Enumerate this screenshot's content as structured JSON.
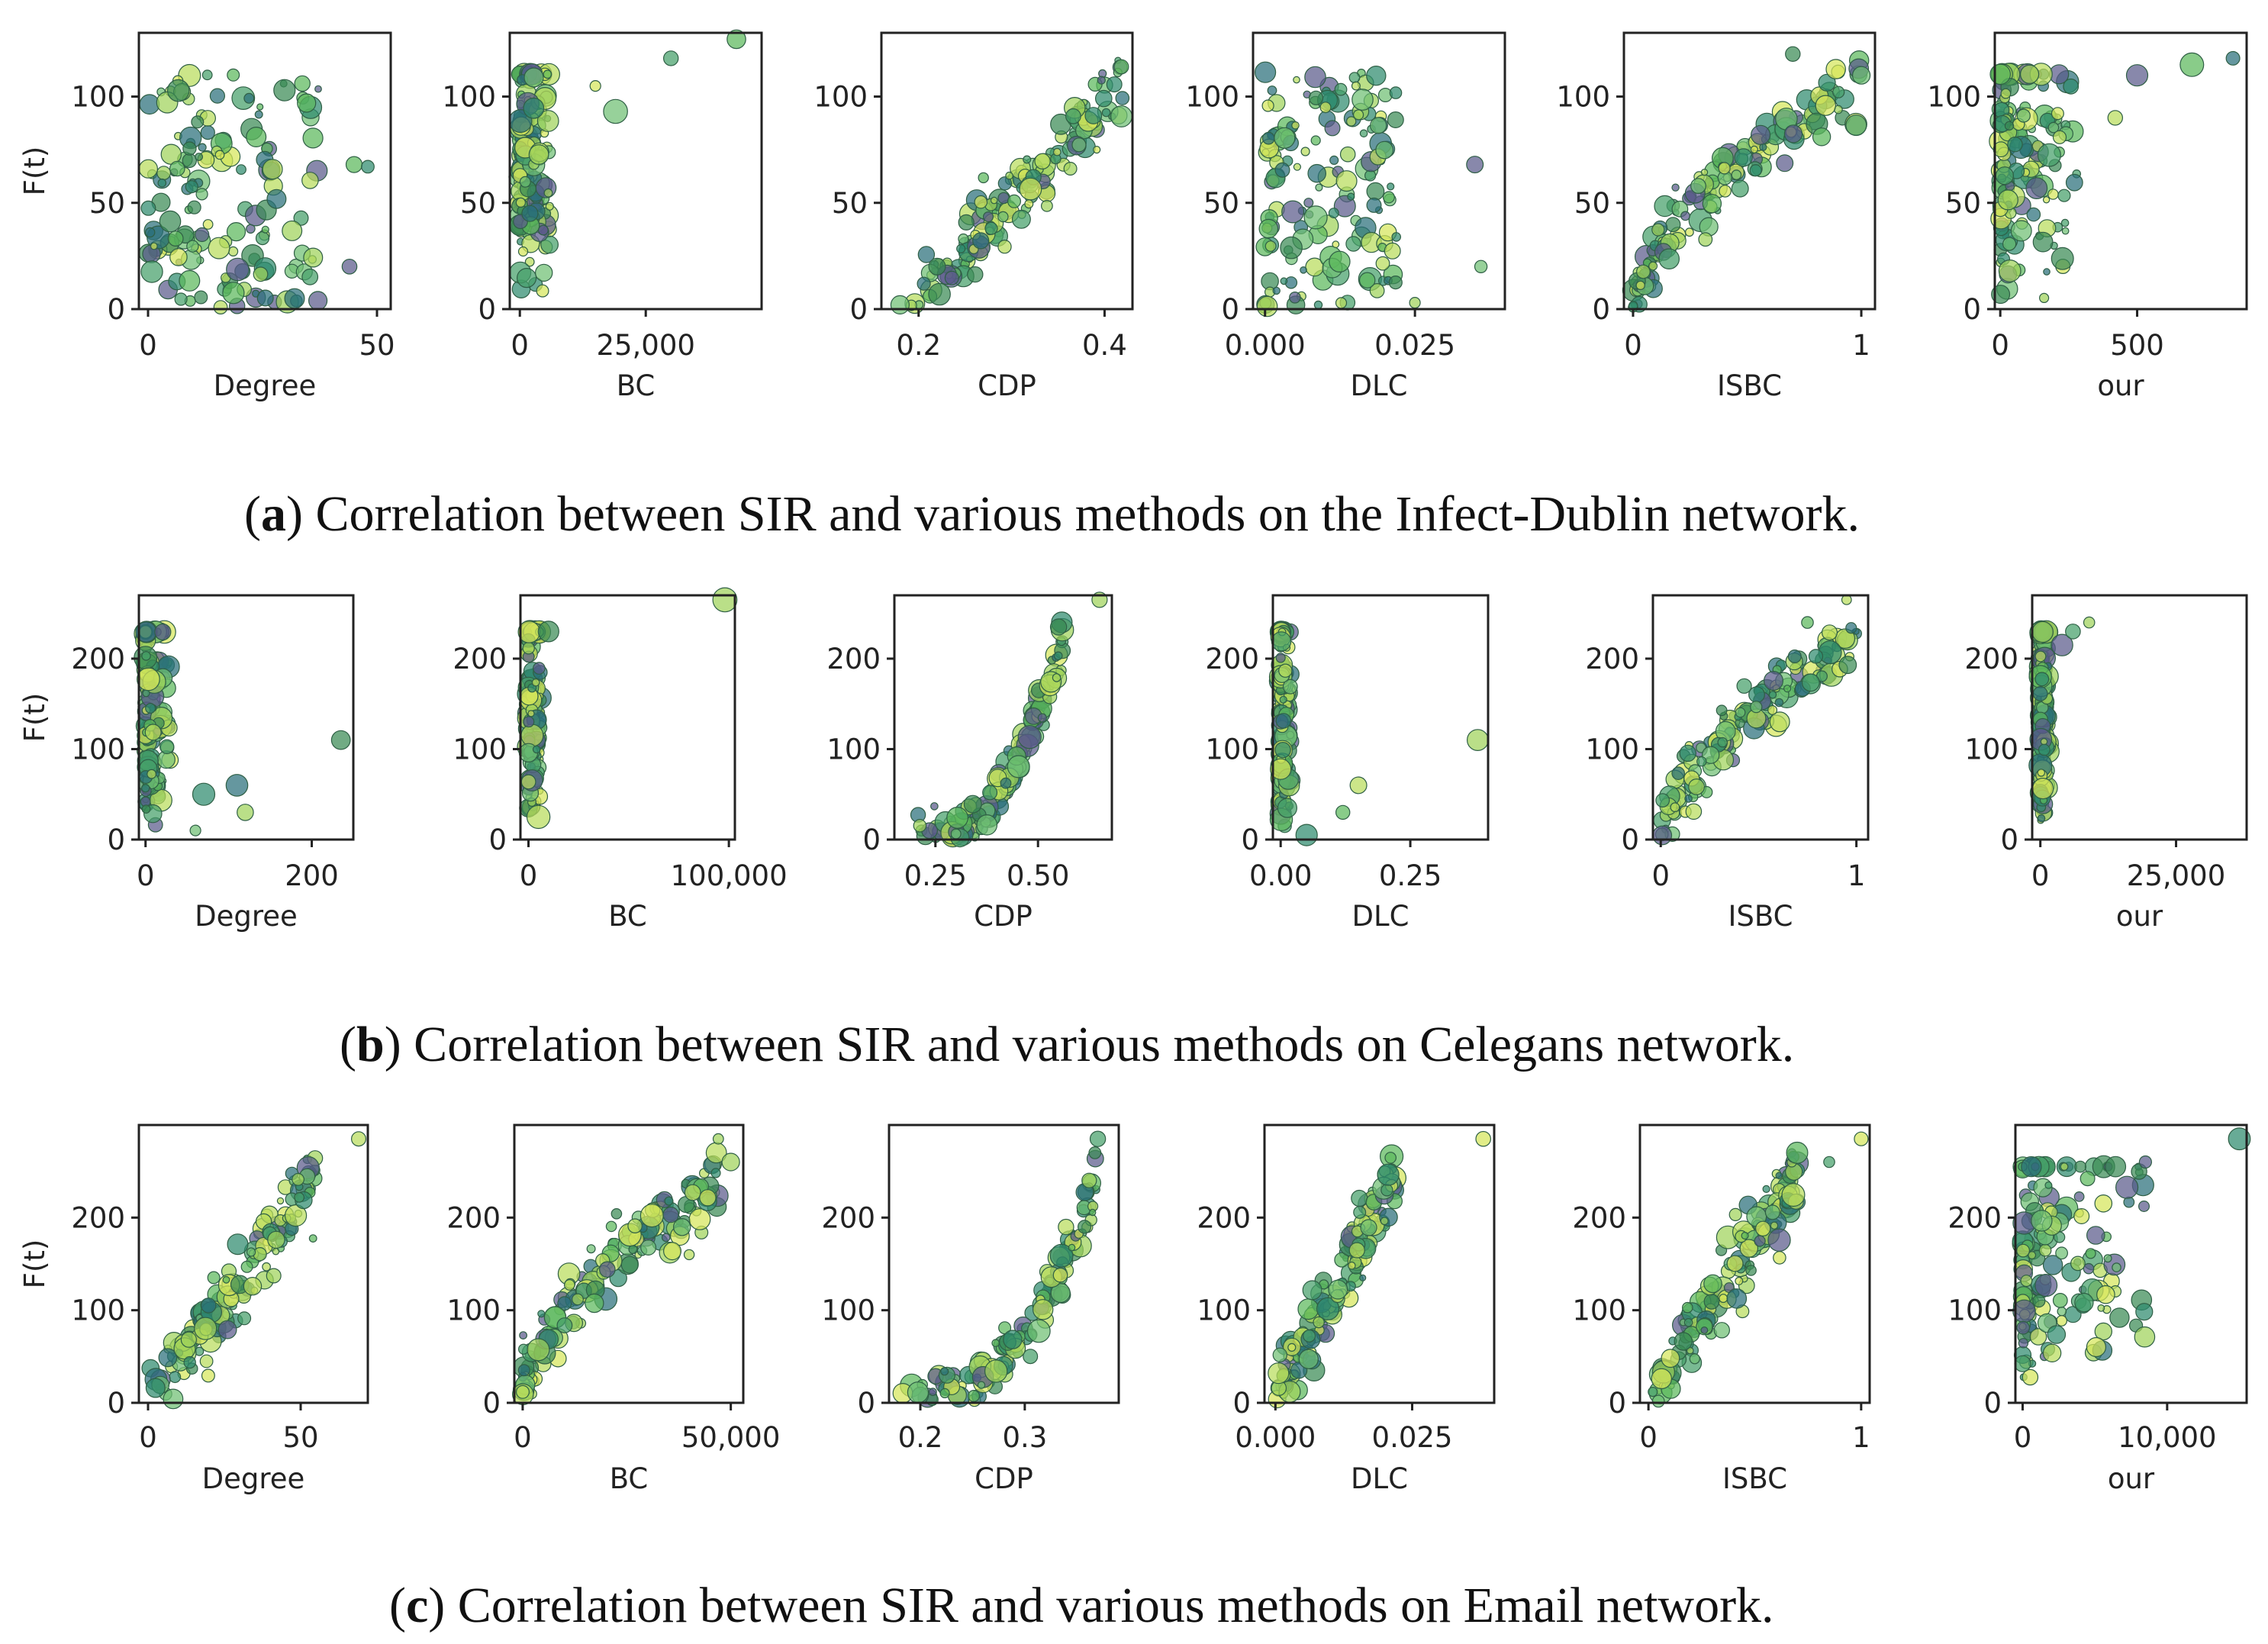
{
  "figure": {
    "ylabel": "F(t)",
    "palette": [
      "#3a8a55",
      "#5cb85c",
      "#9fd35a",
      "#d6e65a",
      "#2e8b6e",
      "#45a06a",
      "#6fbf73",
      "#5a5a8a",
      "#2a6f7a",
      "#b8dc5c"
    ]
  },
  "chart_data": [
    {
      "row": "a",
      "caption_letter": "a",
      "caption_text": "Correlation between SIR and various methods on the Infect-Dublin network.",
      "type": "scatter",
      "ylabel": "F(t)",
      "ylim": [
        0,
        130
      ],
      "yticks": [
        0,
        50,
        100
      ],
      "panels": [
        {
          "xlabel": "Degree",
          "xlim": [
            -2,
            53
          ],
          "xticks": [
            {
              "v": 0,
              "label": "0"
            },
            {
              "v": 50,
              "label": "50"
            }
          ],
          "shape": "spread",
          "xmax_data": 50,
          "outliers": [
            [
              45,
              68
            ],
            [
              48,
              67
            ],
            [
              44,
              20
            ],
            [
              32,
              5
            ]
          ]
        },
        {
          "xlabel": "BC",
          "xlim": [
            -2000,
            48000
          ],
          "xticks": [
            {
              "v": 0,
              "label": "0"
            },
            {
              "v": 25000,
              "label": "25,000"
            }
          ],
          "shape": "steep",
          "xmax_data": 6000,
          "outliers": [
            [
              19000,
              93
            ],
            [
              30000,
              118
            ],
            [
              43000,
              127
            ],
            [
              15000,
              105
            ],
            [
              2000,
              45
            ]
          ]
        },
        {
          "xlabel": "CDP",
          "xlim": [
            0.16,
            0.43
          ],
          "xticks": [
            {
              "v": 0.2,
              "label": "0.2"
            },
            {
              "v": 0.4,
              "label": "0.4"
            }
          ],
          "shape": "linear",
          "xmin_data": 0.19,
          "xmax_data": 0.42,
          "outliers": [
            [
              0.18,
              2
            ]
          ]
        },
        {
          "xlabel": "DLC",
          "xlim": [
            -0.002,
            0.04
          ],
          "xticks": [
            {
              "v": 0,
              "label": "0.000"
            },
            {
              "v": 0.025,
              "label": "0.025"
            }
          ],
          "shape": "spread",
          "xmax_data": 0.03,
          "outliers": [
            [
              0.035,
              68
            ],
            [
              0.036,
              20
            ],
            [
              0.025,
              3
            ]
          ]
        },
        {
          "xlabel": "ISBC",
          "xlim": [
            -0.04,
            1.06
          ],
          "xticks": [
            {
              "v": 0,
              "label": "0"
            },
            {
              "v": 1,
              "label": "1"
            }
          ],
          "shape": "concave",
          "xmax_data": 1,
          "outliers": [
            [
              1.0,
              110
            ],
            [
              0.7,
              120
            ]
          ]
        },
        {
          "xlabel": "our",
          "xlim": [
            -20,
            900
          ],
          "xticks": [
            {
              "v": 0,
              "label": "0"
            },
            {
              "v": 500,
              "label": "500"
            }
          ],
          "shape": "steep",
          "xmax_data": 280,
          "outliers": [
            [
              500,
              110
            ],
            [
              700,
              115
            ],
            [
              850,
              118
            ],
            [
              420,
              90
            ]
          ]
        }
      ]
    },
    {
      "row": "b",
      "caption_letter": "b",
      "caption_text": "Correlation between SIR and various methods on Celegans network.",
      "type": "scatter",
      "ylabel": "F(t)",
      "ylim": [
        0,
        270
      ],
      "yticks": [
        0,
        100,
        200
      ],
      "panels": [
        {
          "xlabel": "Degree",
          "xlim": [
            -8,
            250
          ],
          "xticks": [
            {
              "v": 0,
              "label": "0"
            },
            {
              "v": 200,
              "label": "200"
            }
          ],
          "shape": "vertical",
          "xmax_data": 30,
          "outliers": [
            [
              235,
              110
            ],
            [
              110,
              60
            ],
            [
              70,
              50
            ],
            [
              120,
              30
            ],
            [
              60,
              10
            ]
          ]
        },
        {
          "xlabel": "BC",
          "xlim": [
            -4000,
            103000
          ],
          "xticks": [
            {
              "v": 0,
              "label": "0"
            },
            {
              "v": 100000,
              "label": "100,000"
            }
          ],
          "shape": "vertical",
          "xmax_data": 6000,
          "outliers": [
            [
              10000,
              230
            ],
            [
              98000,
              265
            ],
            [
              5000,
              25
            ]
          ]
        },
        {
          "xlabel": "CDP",
          "xlim": [
            0.15,
            0.68
          ],
          "xticks": [
            {
              "v": 0.25,
              "label": "0.25"
            },
            {
              "v": 0.5,
              "label": "0.50"
            }
          ],
          "shape": "convex",
          "xmin_data": 0.2,
          "xmax_data": 0.56,
          "outliers": [
            [
              0.65,
              265
            ],
            [
              0.55,
              235
            ]
          ]
        },
        {
          "xlabel": "DLC",
          "xlim": [
            -0.015,
            0.4
          ],
          "xticks": [
            {
              "v": 0,
              "label": "0.00"
            },
            {
              "v": 0.25,
              "label": "0.25"
            }
          ],
          "shape": "vertical",
          "xmax_data": 0.02,
          "outliers": [
            [
              0.38,
              110
            ],
            [
              0.15,
              60
            ],
            [
              0.12,
              30
            ],
            [
              0.05,
              5
            ]
          ]
        },
        {
          "xlabel": "ISBC",
          "xlim": [
            -0.04,
            1.06
          ],
          "xticks": [
            {
              "v": 0,
              "label": "0"
            },
            {
              "v": 1,
              "label": "1"
            }
          ],
          "shape": "concave",
          "xmax_data": 1,
          "outliers": [
            [
              0.95,
              265
            ],
            [
              0.75,
              240
            ]
          ]
        },
        {
          "xlabel": "our",
          "xlim": [
            -1500,
            38000
          ],
          "xticks": [
            {
              "v": 0,
              "label": "0"
            },
            {
              "v": 25000,
              "label": "25,000"
            }
          ],
          "shape": "vertical",
          "xmax_data": 1500,
          "outliers": [
            [
              4000,
              215
            ],
            [
              9000,
              240
            ],
            [
              6000,
              230
            ]
          ]
        }
      ]
    },
    {
      "row": "c",
      "caption_letter": "c",
      "caption_text": "Correlation between SIR and various methods on Email network.",
      "type": "scatter",
      "ylabel": "F(t)",
      "ylim": [
        0,
        300
      ],
      "yticks": [
        0,
        100,
        200
      ],
      "panels": [
        {
          "xlabel": "Degree",
          "xlim": [
            -3,
            72
          ],
          "xticks": [
            {
              "v": 0,
              "label": "0"
            },
            {
              "v": 50,
              "label": "50"
            }
          ],
          "shape": "linear",
          "xmin_data": 0,
          "xmax_data": 55,
          "outliers": [
            [
              69,
              285
            ]
          ]
        },
        {
          "xlabel": "BC",
          "xlim": [
            -2000,
            53000
          ],
          "xticks": [
            {
              "v": 0,
              "label": "0"
            },
            {
              "v": 50000,
              "label": "50,000"
            }
          ],
          "shape": "concave",
          "xmax_data": 48000,
          "outliers": [
            [
              50000,
              260
            ],
            [
              47000,
              285
            ],
            [
              40000,
              160
            ]
          ]
        },
        {
          "xlabel": "CDP",
          "xlim": [
            0.17,
            0.39
          ],
          "xticks": [
            {
              "v": 0.2,
              "label": "0.2"
            },
            {
              "v": 0.3,
              "label": "0.3"
            }
          ],
          "shape": "convex",
          "xmin_data": 0.18,
          "xmax_data": 0.37,
          "outliers": [
            [
              0.37,
              285
            ]
          ]
        },
        {
          "xlabel": "DLC",
          "xlim": [
            -0.002,
            0.04
          ],
          "xticks": [
            {
              "v": 0,
              "label": "0.000"
            },
            {
              "v": 0.025,
              "label": "0.025"
            }
          ],
          "shape": "linear",
          "xmin_data": 0,
          "xmax_data": 0.022,
          "outliers": [
            [
              0.038,
              285
            ]
          ]
        },
        {
          "xlabel": "ISBC",
          "xlim": [
            -0.04,
            1.04
          ],
          "xticks": [
            {
              "v": 0,
              "label": "0"
            },
            {
              "v": 1,
              "label": "1"
            }
          ],
          "shape": "linear",
          "xmin_data": 0,
          "xmax_data": 0.7,
          "outliers": [
            [
              1.0,
              285
            ],
            [
              0.85,
              260
            ]
          ]
        },
        {
          "xlabel": "our",
          "xlim": [
            -500,
            15500
          ],
          "xticks": [
            {
              "v": 0,
              "label": "0"
            },
            {
              "v": 10000,
              "label": "10,000"
            }
          ],
          "shape": "steep",
          "xmax_data": 8500,
          "outliers": [
            [
              15000,
              285
            ],
            [
              8500,
              260
            ]
          ]
        }
      ]
    }
  ]
}
